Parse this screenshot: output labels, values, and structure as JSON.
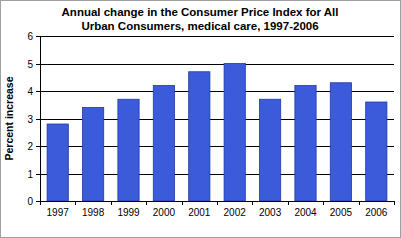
{
  "chart_data": {
    "type": "bar",
    "title": "Annual change in the Consumer Price Index for All\nUrban Consumers, medical care, 1997-2006",
    "y_label": "Percent increase",
    "categories": [
      "1997",
      "1998",
      "1999",
      "2000",
      "2001",
      "2002",
      "2003",
      "2004",
      "2005",
      "2006"
    ],
    "values": [
      2.8,
      3.4,
      3.7,
      4.2,
      4.7,
      5.0,
      3.7,
      4.2,
      4.3,
      3.6
    ],
    "color": "#3b5bdb",
    "ylim": [
      0,
      6
    ],
    "yticks": [
      0,
      1,
      2,
      3,
      4,
      5,
      6
    ],
    "grid": true
  }
}
